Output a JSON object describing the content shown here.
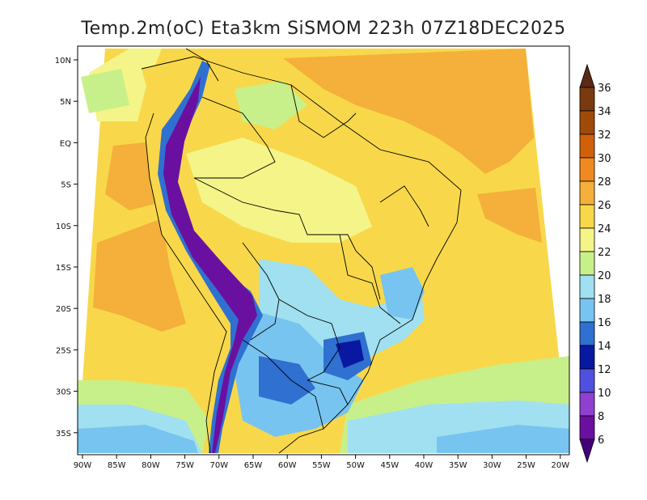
{
  "title": "Temp.2m(oC) Eta3km SiSMOM 223h 07Z18DEC2025",
  "map": {
    "lat_labels": [
      "10N",
      "5N",
      "EQ",
      "5S",
      "10S",
      "15S",
      "20S",
      "25S",
      "30S",
      "35S"
    ],
    "lon_labels": [
      "90W",
      "85W",
      "80W",
      "75W",
      "70W",
      "65W",
      "60W",
      "55W",
      "50W",
      "45W",
      "40W",
      "35W",
      "30W",
      "25W",
      "20W"
    ],
    "lat_range": [
      10,
      -37
    ],
    "lon_range": [
      -90,
      -20
    ]
  },
  "colorbar": {
    "labels": [
      "36",
      "34",
      "32",
      "30",
      "28",
      "26",
      "24",
      "22",
      "20",
      "18",
      "16",
      "14",
      "12",
      "10",
      "8",
      "6"
    ],
    "units": "oC",
    "colors": [
      "#5a2a14",
      "#7a3a10",
      "#a04a0a",
      "#d0600a",
      "#f08a20",
      "#f4b03a",
      "#f8d84a",
      "#f4f488",
      "#c8f08a",
      "#a0e0f0",
      "#78c4f0",
      "#3070d0",
      "#0818a0",
      "#5050e0",
      "#9040d0",
      "#6a10a0",
      "#440078"
    ]
  }
}
